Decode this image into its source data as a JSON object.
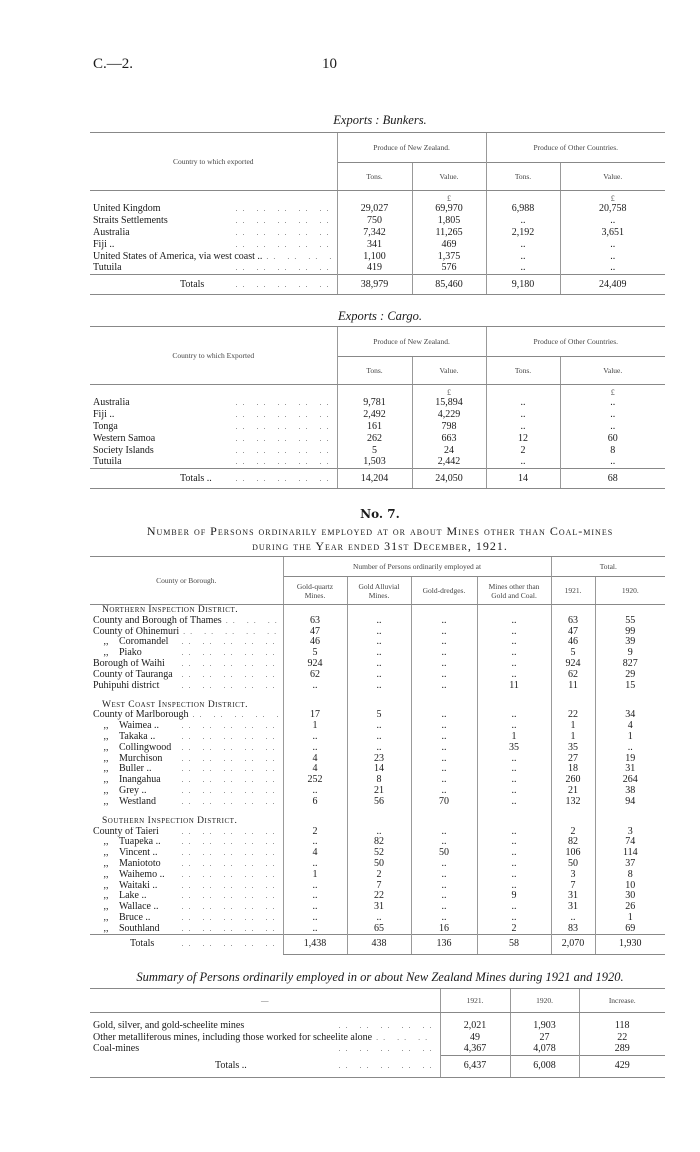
{
  "header": {
    "ref": "C.—2.",
    "page": "10"
  },
  "bunkers": {
    "title": "Exports : Bunkers.",
    "col_country": "Country to which exported",
    "group_nz": "Produce of New Zealand.",
    "group_other": "Produce of Other Countries.",
    "sub": [
      "Tons.",
      "Value.",
      "Tons.",
      "Value."
    ],
    "pound": "£",
    "rows": [
      {
        "name": "United Kingdom",
        "v": [
          "29,027",
          "69,970",
          "6,988",
          "20,758"
        ]
      },
      {
        "name": "Straits Settlements",
        "v": [
          "750",
          "1,805",
          "..",
          ".."
        ]
      },
      {
        "name": "Australia",
        "v": [
          "7,342",
          "11,265",
          "2,192",
          "3,651"
        ]
      },
      {
        "name": "Fiji ..",
        "v": [
          "341",
          "469",
          "..",
          ".."
        ]
      },
      {
        "name": "United States of America, via west coast ..",
        "v": [
          "1,100",
          "1,375",
          "..",
          ".."
        ]
      },
      {
        "name": "Tutuila",
        "v": [
          "419",
          "576",
          "..",
          ".."
        ]
      }
    ],
    "totals": {
      "label": "Totals",
      "v": [
        "38,979",
        "85,460",
        "9,180",
        "24,409"
      ]
    }
  },
  "cargo": {
    "title": "Exports : Cargo.",
    "col_country": "Country to which Exported",
    "group_nz": "Produce of New Zealand.",
    "group_other": "Produce of Other Countries.",
    "sub": [
      "Tons.",
      "Value.",
      "Tons.",
      "Value."
    ],
    "pound": "£",
    "rows": [
      {
        "name": "Australia",
        "v": [
          "9,781",
          "15,894",
          "..",
          ".."
        ]
      },
      {
        "name": "Fiji ..",
        "v": [
          "2,492",
          "4,229",
          "..",
          ".."
        ]
      },
      {
        "name": "Tonga",
        "v": [
          "161",
          "798",
          "..",
          ".."
        ]
      },
      {
        "name": "Western Samoa",
        "v": [
          "262",
          "663",
          "12",
          "60"
        ]
      },
      {
        "name": "Society Islands",
        "v": [
          "5",
          "24",
          "2",
          "8"
        ]
      },
      {
        "name": "Tutuila",
        "v": [
          "1,503",
          "2,442",
          "..",
          ".."
        ]
      }
    ],
    "totals": {
      "label": "Totals ..",
      "v": [
        "14,204",
        "24,050",
        "14",
        "68"
      ]
    }
  },
  "no7": {
    "number": "No. 7.",
    "caption_line1": "Number of Persons ordinarily employed at or about Mines other than Coal-mines",
    "caption_line2": "during the Year ended 31st December, 1921.",
    "col_county": "County or Borough.",
    "group_employed": "Number of Persons ordinarily employed at",
    "group_total": "Total.",
    "sub": [
      "Gold-quartz Mines.",
      "Gold Alluvial Mines.",
      "Gold-dredges.",
      "Mines other than Gold and Coal.",
      "1921.",
      "1920."
    ],
    "districts": [
      {
        "title": "Northern Inspection District.",
        "rows": [
          {
            "pre": "",
            "name": "County and Borough of Thames",
            "v": [
              "63",
              "..",
              "..",
              "..",
              "63",
              "55"
            ]
          },
          {
            "pre": "",
            "name": "County of Ohinemuri",
            "v": [
              "47",
              "..",
              "..",
              "..",
              "47",
              "99"
            ]
          },
          {
            "pre": ",,",
            "name": "Coromandel",
            "v": [
              "46",
              "..",
              "..",
              "..",
              "46",
              "39"
            ]
          },
          {
            "pre": ",,",
            "name": "Piako",
            "v": [
              "5",
              "..",
              "..",
              "..",
              "5",
              "9"
            ]
          },
          {
            "pre": "",
            "name": "Borough of Waihi",
            "v": [
              "924",
              "..",
              "..",
              "..",
              "924",
              "827"
            ]
          },
          {
            "pre": "",
            "name": "County of Tauranga",
            "v": [
              "62",
              "..",
              "..",
              "..",
              "62",
              "29"
            ]
          },
          {
            "pre": "",
            "name": "Puhipuhi district",
            "v": [
              "..",
              "..",
              "..",
              "11",
              "11",
              "15"
            ]
          }
        ]
      },
      {
        "title": "West Coast Inspection District.",
        "rows": [
          {
            "pre": "",
            "name": "County of Marlborough",
            "v": [
              "17",
              "5",
              "..",
              "..",
              "22",
              "34"
            ]
          },
          {
            "pre": ",,",
            "name": "Waimea ..",
            "v": [
              "1",
              "..",
              "..",
              "..",
              "1",
              "4"
            ]
          },
          {
            "pre": ",,",
            "name": "Takaka ..",
            "v": [
              "..",
              "..",
              "..",
              "1",
              "1",
              "1"
            ]
          },
          {
            "pre": ",,",
            "name": "Collingwood",
            "v": [
              "..",
              "..",
              "..",
              "35",
              "35",
              ".."
            ]
          },
          {
            "pre": ",,",
            "name": "Murchison",
            "v": [
              "4",
              "23",
              "..",
              "..",
              "27",
              "19"
            ]
          },
          {
            "pre": ",,",
            "name": "Buller ..",
            "v": [
              "4",
              "14",
              "..",
              "..",
              "18",
              "31"
            ]
          },
          {
            "pre": ",,",
            "name": "Inangahua",
            "v": [
              "252",
              "8",
              "..",
              "..",
              "260",
              "264"
            ]
          },
          {
            "pre": ",,",
            "name": "Grey ..",
            "v": [
              "..",
              "21",
              "..",
              "..",
              "21",
              "38"
            ]
          },
          {
            "pre": ",,",
            "name": "Westland",
            "v": [
              "6",
              "56",
              "70",
              "..",
              "132",
              "94"
            ]
          }
        ]
      },
      {
        "title": "Southern Inspection District.",
        "rows": [
          {
            "pre": "",
            "name": "County of Taieri",
            "v": [
              "2",
              "..",
              "..",
              "..",
              "2",
              "3"
            ]
          },
          {
            "pre": ",,",
            "name": "Tuapeka ..",
            "v": [
              "..",
              "82",
              "..",
              "..",
              "82",
              "74"
            ]
          },
          {
            "pre": ",,",
            "name": "Vincent ..",
            "v": [
              "4",
              "52",
              "50",
              "..",
              "106",
              "114"
            ]
          },
          {
            "pre": ",,",
            "name": "Maniototo",
            "v": [
              "..",
              "50",
              "..",
              "..",
              "50",
              "37"
            ]
          },
          {
            "pre": ",,",
            "name": "Waihemo ..",
            "v": [
              "1",
              "2",
              "..",
              "..",
              "3",
              "8"
            ]
          },
          {
            "pre": ",,",
            "name": "Waitaki ..",
            "v": [
              "..",
              "7",
              "..",
              "..",
              "7",
              "10"
            ]
          },
          {
            "pre": ",,",
            "name": "Lake ..",
            "v": [
              "..",
              "22",
              "..",
              "9",
              "31",
              "30"
            ]
          },
          {
            "pre": ",,",
            "name": "Wallace ..",
            "v": [
              "..",
              "31",
              "..",
              "..",
              "31",
              "26"
            ]
          },
          {
            "pre": ",,",
            "name": "Bruce ..",
            "v": [
              "..",
              "..",
              "..",
              "..",
              "..",
              "1"
            ]
          },
          {
            "pre": ",,",
            "name": "Southland",
            "v": [
              "..",
              "65",
              "16",
              "2",
              "83",
              "69"
            ]
          }
        ]
      }
    ],
    "totals": {
      "label": "Totals",
      "v": [
        "1,438",
        "438",
        "136",
        "58",
        "2,070",
        "1,930"
      ]
    }
  },
  "summary": {
    "title": "Summary of Persons ordinarily employed in or about New Zealand Mines during 1921 and 1920.",
    "col_blank": "—",
    "sub": [
      "1921.",
      "1920.",
      "Increase."
    ],
    "rows": [
      {
        "name": "Gold, silver, and gold-scheelite mines",
        "v": [
          "2,021",
          "1,903",
          "118"
        ]
      },
      {
        "name": "Other metalliferous mines, including those worked for scheelite alone",
        "v": [
          "49",
          "27",
          "22"
        ]
      },
      {
        "name": "Coal-mines",
        "v": [
          "4,367",
          "4,078",
          "289"
        ]
      }
    ],
    "totals": {
      "label": "Totals ..",
      "v": [
        "6,437",
        "6,008",
        "429"
      ]
    }
  }
}
